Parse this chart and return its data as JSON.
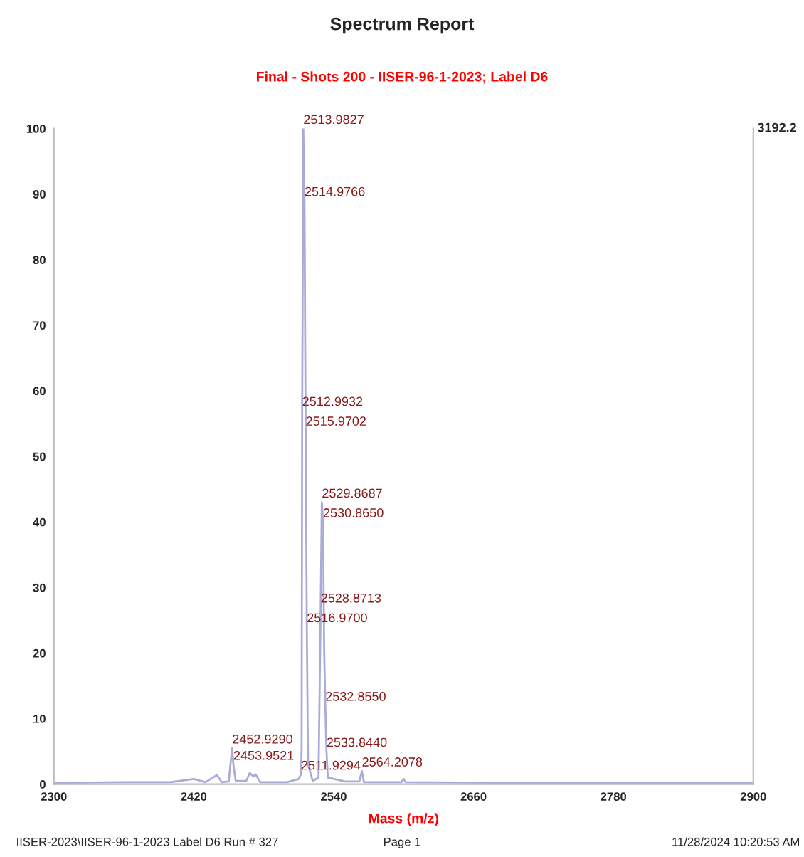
{
  "chart_data": {
    "type": "line",
    "title": "Spectrum Report",
    "subtitle": "Final - Shots 200 - IISER-96-1-2023; Label D6",
    "xlabel": "Mass (m/z)",
    "series": [
      {
        "color": "#a9acd8",
        "x": [
          2300,
          2360,
          2400,
          2420,
          2430,
          2440,
          2444,
          2450,
          2452.929,
          2453.9521,
          2456,
          2465,
          2468,
          2471,
          2473,
          2477,
          2500,
          2510,
          2511.9294,
          2512.5,
          2512.9932,
          2513.9827,
          2514.9766,
          2515.9702,
          2516.97,
          2518,
          2522,
          2527,
          2528.8713,
          2529.8687,
          2530.865,
          2531.9,
          2532.855,
          2533.844,
          2535,
          2550,
          2562,
          2564.2078,
          2566,
          2598,
          2600,
          2602,
          2700,
          2900
        ],
        "values": [
          0.2,
          0.3,
          0.3,
          0.8,
          0.3,
          1.4,
          0.3,
          0.4,
          5.5,
          3,
          0.5,
          0.5,
          1.7,
          1.2,
          1.5,
          0.3,
          0.3,
          0.8,
          1.5,
          5,
          57,
          100,
          89,
          54,
          24,
          3,
          0.5,
          1,
          27,
          43,
          40,
          20,
          12,
          5,
          1,
          0.4,
          0.4,
          2,
          0.3,
          0.3,
          0.8,
          0.3,
          0.2,
          0.2
        ]
      }
    ],
    "xlim": [
      2300,
      2900
    ],
    "xticks": [
      2300,
      2420,
      2540,
      2660,
      2780,
      2900
    ],
    "ylim": [
      0,
      100
    ],
    "yticks": [
      0,
      10,
      20,
      30,
      40,
      50,
      60,
      70,
      80,
      90,
      100
    ],
    "grid": false,
    "marker": "none",
    "line_style": "solid",
    "annotations": [
      {
        "text": "2513.9827",
        "x": 2513.9827,
        "y": 100
      },
      {
        "text": "2514.9766",
        "x": 2514.9766,
        "y": 89
      },
      {
        "text": "2512.9932",
        "x": 2512.9932,
        "y": 57
      },
      {
        "text": "2515.9702",
        "x": 2515.9702,
        "y": 54
      },
      {
        "text": "2529.8687",
        "x": 2529.8687,
        "y": 43
      },
      {
        "text": "2530.8650",
        "x": 2530.865,
        "y": 40
      },
      {
        "text": "2528.8713",
        "x": 2528.8713,
        "y": 27
      },
      {
        "text": "2516.9700",
        "x": 2516.97,
        "y": 24
      },
      {
        "text": "2532.8550",
        "x": 2532.855,
        "y": 12
      },
      {
        "text": "2533.8440",
        "x": 2533.844,
        "y": 5
      },
      {
        "text": "2452.9290",
        "x": 2452.929,
        "y": 5.5
      },
      {
        "text": "2453.9521",
        "x": 2453.9521,
        "y": 3
      },
      {
        "text": "2511.9294",
        "x": 2511.9294,
        "y": 1.5
      },
      {
        "text": "2564.2078",
        "x": 2564.2078,
        "y": 2
      },
      "3192.2",
      "IISER-2023\\IISER-96-1-2023 Label D6 Run # 327",
      "Page 1",
      "11/28/2024 10:20:53 AM"
    ]
  }
}
